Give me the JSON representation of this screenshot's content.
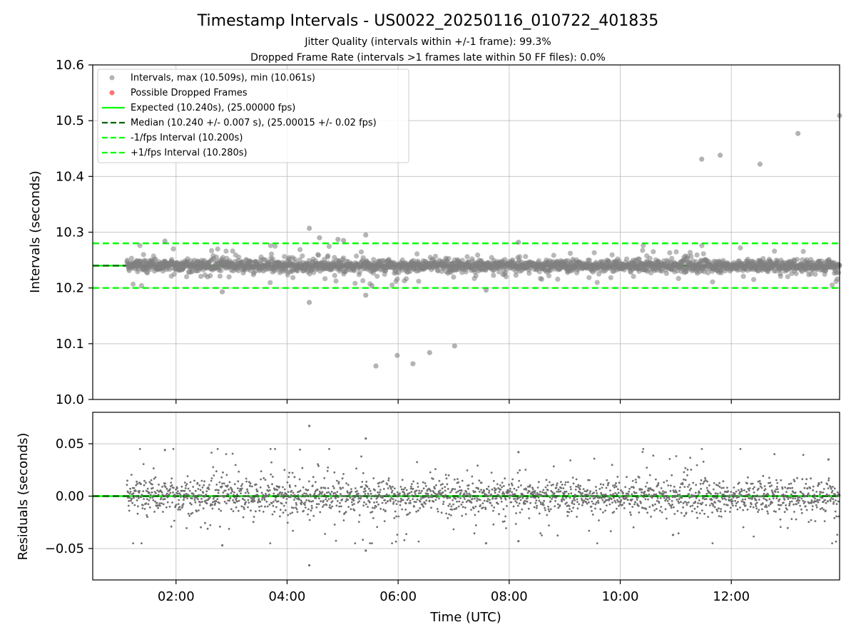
{
  "chart_data": [
    {
      "type": "scatter",
      "title": "Timestamp Intervals - US0022_20250116_010722_401835",
      "subtitle_1": "Jitter Quality (intervals within +/-1 frame): 99.3%",
      "subtitle_2": "Dropped Frame Rate (intervals >1 frames late within 50 FF files): 0.0%",
      "xlabel": "",
      "ylabel": "Intervals (seconds)",
      "xlim": [
        "00:30",
        "13:57"
      ],
      "ylim": [
        10.0,
        10.6
      ],
      "yticks": [
        10.0,
        10.1,
        10.2,
        10.3,
        10.4,
        10.5,
        10.6
      ],
      "ytick_labels": [
        "10.0",
        "10.1",
        "10.2",
        "10.3",
        "10.4",
        "10.5",
        "10.6"
      ],
      "grid": true,
      "legend_position": "top-left",
      "colors": {
        "intervals": "#808080",
        "dropped": "#ff0000",
        "expected": "#00ff00",
        "median": "#006400",
        "bounds": "#00ff00",
        "grid": "#b0b0b0"
      },
      "legend": [
        "Intervals, max (10.509s), min (10.061s)",
        "Possible Dropped Frames",
        "Expected (10.240s), (25.00000 fps)",
        "Median (10.240 +/- 0.007 s), (25.00015 +/- 0.02 fps)",
        "-1/fps Interval (10.200s)",
        "+1/fps Interval (10.280s)"
      ],
      "reference_lines": {
        "expected": 10.24,
        "median": 10.24,
        "lower": 10.2,
        "upper": 10.28
      },
      "series": [
        {
          "name": "Intervals, max (10.509s), min (10.061s)",
          "time_range": [
            "01:07",
            "13:57"
          ],
          "center": 10.24,
          "typical_spread": 0.007,
          "outlier_points": [
            {
              "x": "04:24",
              "y": 10.307
            },
            {
              "x": "04:24",
              "y": 10.174
            },
            {
              "x": "04:35",
              "y": 10.29
            },
            {
              "x": "04:55",
              "y": 10.287
            },
            {
              "x": "05:01",
              "y": 10.285
            },
            {
              "x": "05:25",
              "y": 10.295
            },
            {
              "x": "05:25",
              "y": 10.187
            },
            {
              "x": "05:36",
              "y": 10.06
            },
            {
              "x": "05:59",
              "y": 10.079
            },
            {
              "x": "06:16",
              "y": 10.064
            },
            {
              "x": "06:34",
              "y": 10.084
            },
            {
              "x": "07:01",
              "y": 10.096
            },
            {
              "x": "07:35",
              "y": 10.196
            },
            {
              "x": "08:10",
              "y": 10.282
            },
            {
              "x": "01:48",
              "y": 10.284
            },
            {
              "x": "02:50",
              "y": 10.193
            },
            {
              "x": "11:28",
              "y": 10.431
            },
            {
              "x": "11:48",
              "y": 10.438
            },
            {
              "x": "12:31",
              "y": 10.422
            },
            {
              "x": "13:12",
              "y": 10.477
            },
            {
              "x": "13:57",
              "y": 10.509
            }
          ]
        },
        {
          "name": "Possible Dropped Frames",
          "points": []
        }
      ]
    },
    {
      "type": "scatter",
      "xlabel": "Time (UTC)",
      "ylabel": "Residuals (seconds)",
      "xlim": [
        "00:30",
        "13:57"
      ],
      "ylim": [
        -0.08,
        0.08
      ],
      "yticks": [
        -0.05,
        0.0,
        0.05
      ],
      "ytick_labels": [
        "−0.05",
        "0.00",
        "0.05"
      ],
      "xticks": [
        "02:00",
        "04:00",
        "06:00",
        "08:00",
        "10:00",
        "12:00"
      ],
      "grid": true,
      "zero_line": 0.0,
      "series": [
        {
          "time_range": [
            "01:07",
            "13:57"
          ],
          "center": 0.0,
          "typical_spread": 0.012,
          "outlier_points": [
            {
              "x": "04:24",
              "y": 0.067
            },
            {
              "x": "04:24",
              "y": -0.066
            },
            {
              "x": "05:25",
              "y": 0.055
            },
            {
              "x": "05:25",
              "y": -0.052
            },
            {
              "x": "01:48",
              "y": 0.044
            },
            {
              "x": "02:50",
              "y": -0.047
            },
            {
              "x": "08:10",
              "y": 0.042
            },
            {
              "x": "08:10",
              "y": -0.043
            },
            {
              "x": "07:35",
              "y": -0.045
            },
            {
              "x": "13:45",
              "y": 0.035
            },
            {
              "x": "10:57",
              "y": -0.037
            }
          ]
        }
      ]
    }
  ]
}
